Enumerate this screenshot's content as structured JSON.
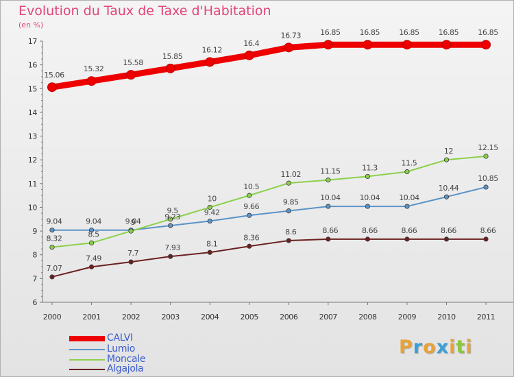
{
  "title": "Evolution du Taux de Taxe d'Habitation",
  "subtitle": "(en %)",
  "brand": {
    "letters": [
      "P",
      "r",
      "o",
      "x",
      "i",
      "t",
      "i"
    ],
    "colors": [
      "#e8a23a",
      "#3aa0d8",
      "#e8a23a",
      "#3aa0d8",
      "#e8a23a",
      "#8cc63f",
      "#e8a23a"
    ]
  },
  "chart_data": {
    "type": "line",
    "x": [
      "2000",
      "2001",
      "2002",
      "2003",
      "2004",
      "2005",
      "2006",
      "2007",
      "2008",
      "2009",
      "2010",
      "2011"
    ],
    "ylim": [
      6,
      17
    ],
    "yticks": [
      "6",
      "7",
      "8",
      "9",
      "10",
      "11",
      "12",
      "13",
      "14",
      "15",
      "16",
      "17"
    ],
    "grid": false,
    "legend": "bottom-left",
    "series": [
      {
        "name": "CALVI",
        "color": "#ee0000",
        "width": 9,
        "values": [
          15.06,
          15.32,
          15.58,
          15.85,
          16.12,
          16.4,
          16.73,
          16.85,
          16.85,
          16.85,
          16.85,
          16.85
        ],
        "labels": [
          "15.06",
          "15.32",
          "15.58",
          "15.85",
          "16.12",
          "16.4",
          "16.73",
          "16.85",
          "16.85",
          "16.85",
          "16.85",
          "16.85"
        ]
      },
      {
        "name": "Lumio",
        "color": "#5b93c7",
        "width": 2,
        "values": [
          9.04,
          9.04,
          9.04,
          9.23,
          9.42,
          9.66,
          9.85,
          10.04,
          10.04,
          10.04,
          10.44,
          10.85
        ],
        "labels": [
          "9.04",
          "9.04",
          "9.04",
          "9.23",
          "9.42",
          "9.66",
          "9.85",
          "10.04",
          "10.04",
          "10.04",
          "10.44",
          "10.85"
        ]
      },
      {
        "name": "Moncale",
        "color": "#8cd04b",
        "width": 2,
        "values": [
          8.32,
          8.5,
          9,
          9.5,
          10,
          10.5,
          11.02,
          11.15,
          11.3,
          11.5,
          12,
          12.15
        ],
        "labels": [
          "8.32",
          "8.5",
          "9",
          "9.5",
          "10",
          "10.5",
          "11.02",
          "11.15",
          "11.3",
          "11.5",
          "12",
          "12.15"
        ]
      },
      {
        "name": "Algajola",
        "color": "#6b2020",
        "width": 2,
        "values": [
          7.07,
          7.49,
          7.7,
          7.93,
          8.1,
          8.36,
          8.6,
          8.66,
          8.66,
          8.66,
          8.66,
          8.66
        ],
        "labels": [
          "7.07",
          "7.49",
          "7.7",
          "7.93",
          "8.1",
          "8.36",
          "8.6",
          "8.66",
          "8.66",
          "8.66",
          "8.66",
          "8.66"
        ]
      }
    ]
  }
}
